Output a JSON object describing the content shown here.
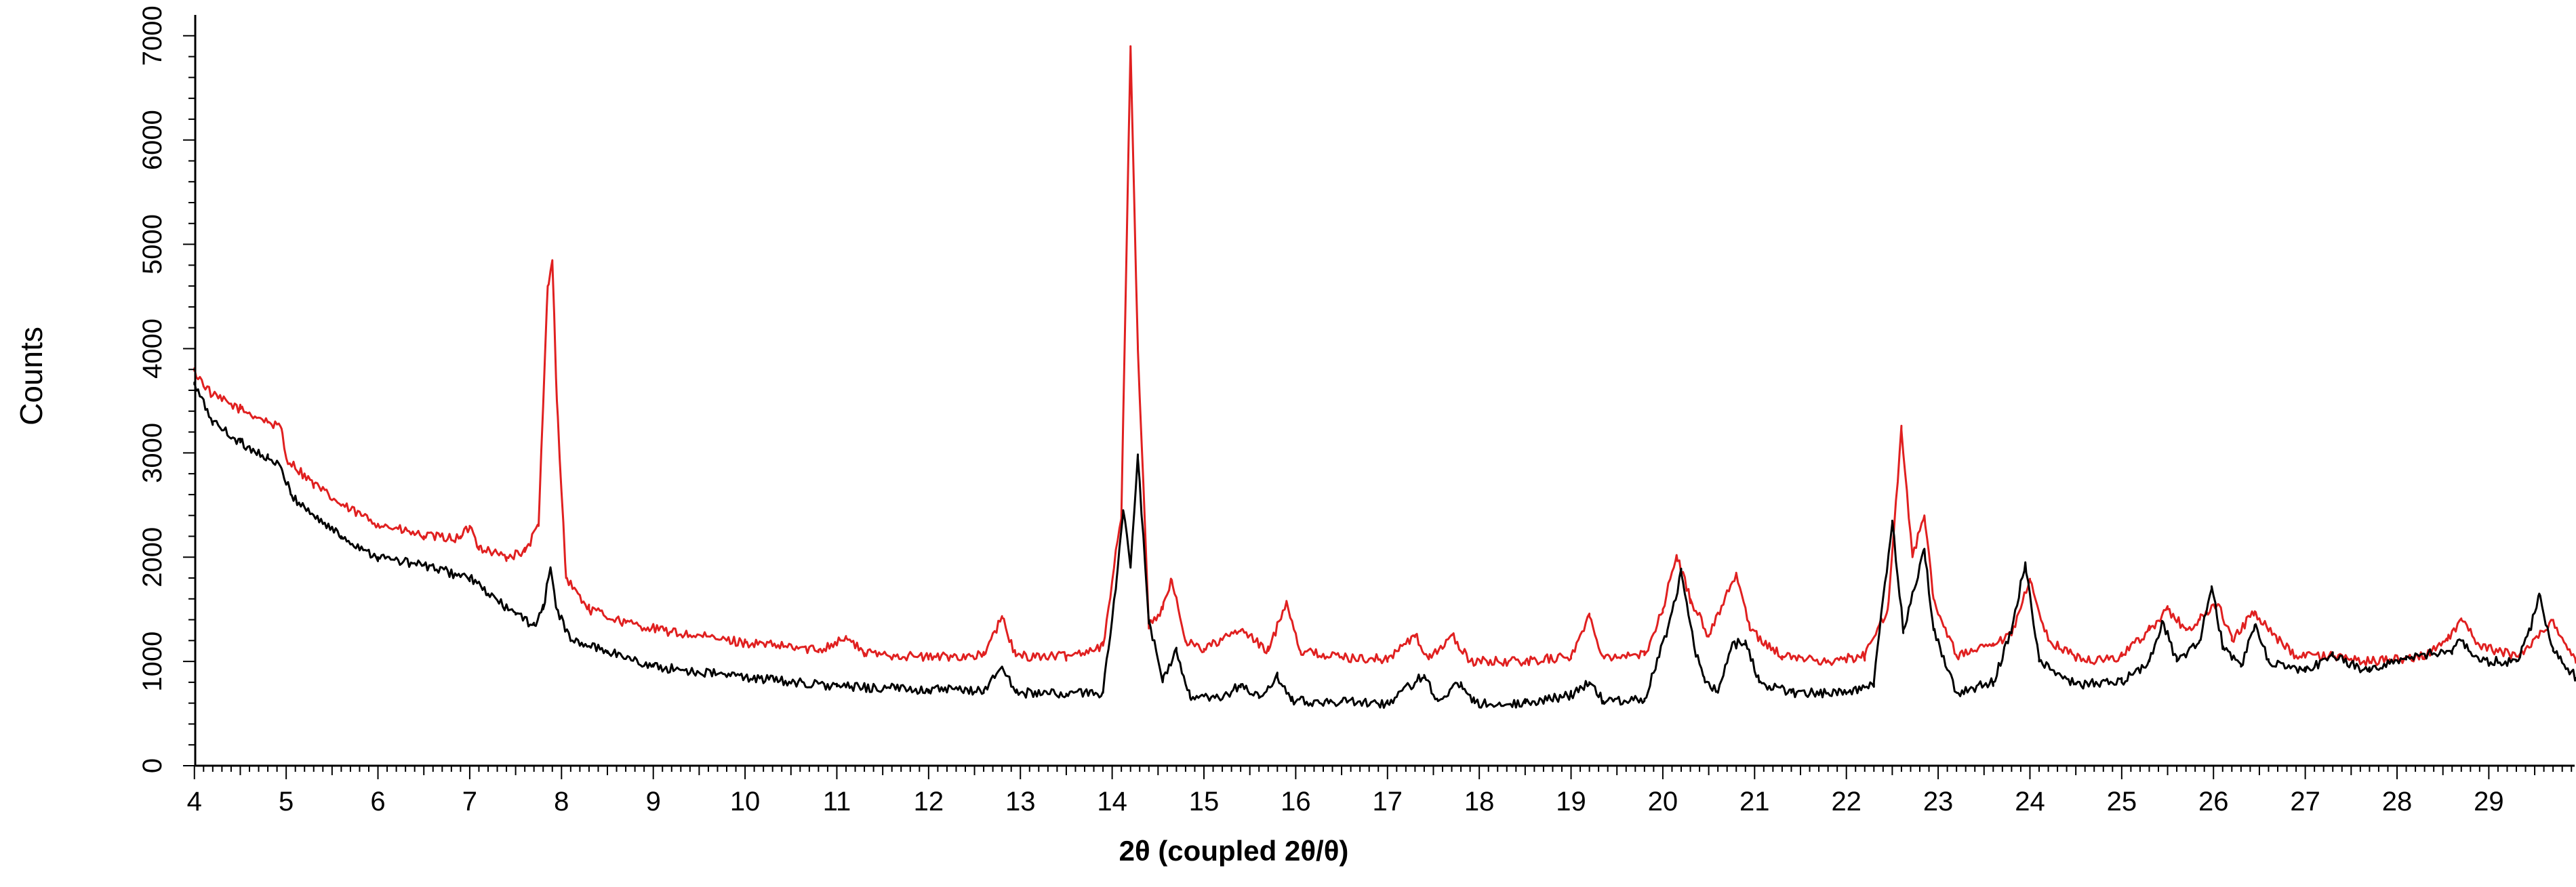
{
  "chart_data": {
    "type": "line",
    "title": "",
    "xlabel": "2θ (coupled 2θ/θ)",
    "ylabel": "Counts",
    "xlim": [
      3.95,
      29.95
    ],
    "ylim": [
      0,
      7200
    ],
    "x_ticks": [
      "4",
      "5",
      "6",
      "7",
      "8",
      "9",
      "10",
      "11",
      "12",
      "13",
      "14",
      "15",
      "16",
      "17",
      "18",
      "19",
      "20",
      "21",
      "22",
      "23",
      "24",
      "25",
      "26",
      "27",
      "28",
      "29"
    ],
    "y_ticks": [
      "0",
      "1000",
      "2000",
      "3000",
      "4000",
      "5000",
      "6000",
      "7000"
    ],
    "grid": false,
    "legend": "none",
    "series": [
      {
        "name": "red pattern",
        "color": "#e02020",
        "points": [
          [
            4.0,
            3780
          ],
          [
            4.2,
            3550
          ],
          [
            4.5,
            3420
          ],
          [
            4.8,
            3300
          ],
          [
            4.95,
            3230
          ],
          [
            5.0,
            2950
          ],
          [
            5.3,
            2700
          ],
          [
            5.6,
            2500
          ],
          [
            6.0,
            2320
          ],
          [
            6.5,
            2200
          ],
          [
            6.9,
            2180
          ],
          [
            7.0,
            2300
          ],
          [
            7.1,
            2100
          ],
          [
            7.4,
            2000
          ],
          [
            7.6,
            2050
          ],
          [
            7.75,
            2300
          ],
          [
            7.85,
            4600
          ],
          [
            7.9,
            4830
          ],
          [
            7.95,
            3500
          ],
          [
            8.05,
            1800
          ],
          [
            8.3,
            1500
          ],
          [
            8.7,
            1370
          ],
          [
            9.2,
            1280
          ],
          [
            10.0,
            1180
          ],
          [
            10.8,
            1110
          ],
          [
            11.1,
            1230
          ],
          [
            11.3,
            1080
          ],
          [
            12.0,
            1040
          ],
          [
            12.6,
            1060
          ],
          [
            12.8,
            1420
          ],
          [
            12.95,
            1050
          ],
          [
            13.5,
            1050
          ],
          [
            13.9,
            1150
          ],
          [
            14.1,
            2400
          ],
          [
            14.2,
            6900
          ],
          [
            14.28,
            4000
          ],
          [
            14.4,
            1350
          ],
          [
            14.55,
            1500
          ],
          [
            14.65,
            1780
          ],
          [
            14.8,
            1200
          ],
          [
            15.0,
            1120
          ],
          [
            15.4,
            1300
          ],
          [
            15.7,
            1100
          ],
          [
            15.9,
            1580
          ],
          [
            16.05,
            1100
          ],
          [
            16.5,
            1040
          ],
          [
            17.0,
            1020
          ],
          [
            17.3,
            1250
          ],
          [
            17.45,
            1020
          ],
          [
            17.7,
            1250
          ],
          [
            17.9,
            1000
          ],
          [
            18.5,
            1000
          ],
          [
            19.0,
            1050
          ],
          [
            19.2,
            1430
          ],
          [
            19.35,
            1050
          ],
          [
            19.8,
            1060
          ],
          [
            20.0,
            1500
          ],
          [
            20.15,
            2020
          ],
          [
            20.3,
            1600
          ],
          [
            20.5,
            1250
          ],
          [
            20.8,
            1850
          ],
          [
            20.95,
            1300
          ],
          [
            21.3,
            1050
          ],
          [
            21.8,
            1000
          ],
          [
            22.2,
            1050
          ],
          [
            22.45,
            1500
          ],
          [
            22.6,
            3220
          ],
          [
            22.72,
            2000
          ],
          [
            22.85,
            2400
          ],
          [
            22.95,
            1600
          ],
          [
            23.2,
            1050
          ],
          [
            23.6,
            1150
          ],
          [
            23.8,
            1250
          ],
          [
            24.0,
            1780
          ],
          [
            24.2,
            1200
          ],
          [
            24.6,
            1000
          ],
          [
            25.0,
            1050
          ],
          [
            25.3,
            1300
          ],
          [
            25.5,
            1500
          ],
          [
            25.7,
            1300
          ],
          [
            25.85,
            1400
          ],
          [
            26.05,
            1550
          ],
          [
            26.2,
            1200
          ],
          [
            26.45,
            1480
          ],
          [
            26.6,
            1300
          ],
          [
            26.9,
            1050
          ],
          [
            27.3,
            1050
          ],
          [
            27.7,
            1000
          ],
          [
            28.3,
            1050
          ],
          [
            28.55,
            1200
          ],
          [
            28.7,
            1400
          ],
          [
            28.9,
            1150
          ],
          [
            29.3,
            1050
          ],
          [
            29.55,
            1250
          ],
          [
            29.7,
            1400
          ],
          [
            29.95,
            980
          ]
        ]
      },
      {
        "name": "black pattern",
        "color": "#000000",
        "points": [
          [
            4.0,
            3650
          ],
          [
            4.2,
            3300
          ],
          [
            4.5,
            3100
          ],
          [
            4.8,
            2950
          ],
          [
            4.95,
            2850
          ],
          [
            5.05,
            2600
          ],
          [
            5.3,
            2400
          ],
          [
            5.6,
            2200
          ],
          [
            6.0,
            2000
          ],
          [
            6.5,
            1920
          ],
          [
            7.0,
            1800
          ],
          [
            7.2,
            1650
          ],
          [
            7.5,
            1450
          ],
          [
            7.7,
            1350
          ],
          [
            7.8,
            1500
          ],
          [
            7.88,
            1900
          ],
          [
            7.95,
            1500
          ],
          [
            8.1,
            1200
          ],
          [
            8.5,
            1100
          ],
          [
            9.0,
            950
          ],
          [
            10.0,
            850
          ],
          [
            11.0,
            760
          ],
          [
            12.0,
            730
          ],
          [
            12.6,
            720
          ],
          [
            12.8,
            950
          ],
          [
            12.95,
            700
          ],
          [
            13.5,
            690
          ],
          [
            13.9,
            700
          ],
          [
            14.05,
            1800
          ],
          [
            14.12,
            2450
          ],
          [
            14.2,
            1900
          ],
          [
            14.28,
            2950
          ],
          [
            14.4,
            1400
          ],
          [
            14.55,
            800
          ],
          [
            14.7,
            1100
          ],
          [
            14.85,
            650
          ],
          [
            15.2,
            640
          ],
          [
            15.4,
            780
          ],
          [
            15.6,
            650
          ],
          [
            15.8,
            850
          ],
          [
            15.95,
            620
          ],
          [
            16.5,
            610
          ],
          [
            17.0,
            600
          ],
          [
            17.4,
            870
          ],
          [
            17.55,
            620
          ],
          [
            17.8,
            800
          ],
          [
            17.95,
            600
          ],
          [
            18.5,
            600
          ],
          [
            19.0,
            680
          ],
          [
            19.2,
            800
          ],
          [
            19.35,
            620
          ],
          [
            19.8,
            640
          ],
          [
            20.05,
            1300
          ],
          [
            20.2,
            1850
          ],
          [
            20.35,
            1100
          ],
          [
            20.45,
            850
          ],
          [
            20.6,
            700
          ],
          [
            20.75,
            1150
          ],
          [
            20.9,
            1200
          ],
          [
            21.05,
            800
          ],
          [
            21.4,
            700
          ],
          [
            22.0,
            700
          ],
          [
            22.3,
            800
          ],
          [
            22.5,
            2350
          ],
          [
            22.62,
            1300
          ],
          [
            22.85,
            2080
          ],
          [
            22.95,
            1300
          ],
          [
            23.2,
            700
          ],
          [
            23.6,
            800
          ],
          [
            23.8,
            1300
          ],
          [
            23.95,
            1950
          ],
          [
            24.1,
            1000
          ],
          [
            24.5,
            780
          ],
          [
            25.0,
            800
          ],
          [
            25.3,
            1000
          ],
          [
            25.45,
            1380
          ],
          [
            25.6,
            1000
          ],
          [
            25.85,
            1200
          ],
          [
            25.98,
            1720
          ],
          [
            26.1,
            1150
          ],
          [
            26.3,
            950
          ],
          [
            26.45,
            1350
          ],
          [
            26.6,
            1000
          ],
          [
            27.0,
            900
          ],
          [
            27.3,
            1050
          ],
          [
            27.7,
            900
          ],
          [
            28.1,
            1050
          ],
          [
            28.6,
            1100
          ],
          [
            28.7,
            1200
          ],
          [
            28.9,
            1000
          ],
          [
            29.3,
            1000
          ],
          [
            29.45,
            1300
          ],
          [
            29.55,
            1650
          ],
          [
            29.7,
            1100
          ],
          [
            29.95,
            850
          ]
        ]
      }
    ]
  }
}
